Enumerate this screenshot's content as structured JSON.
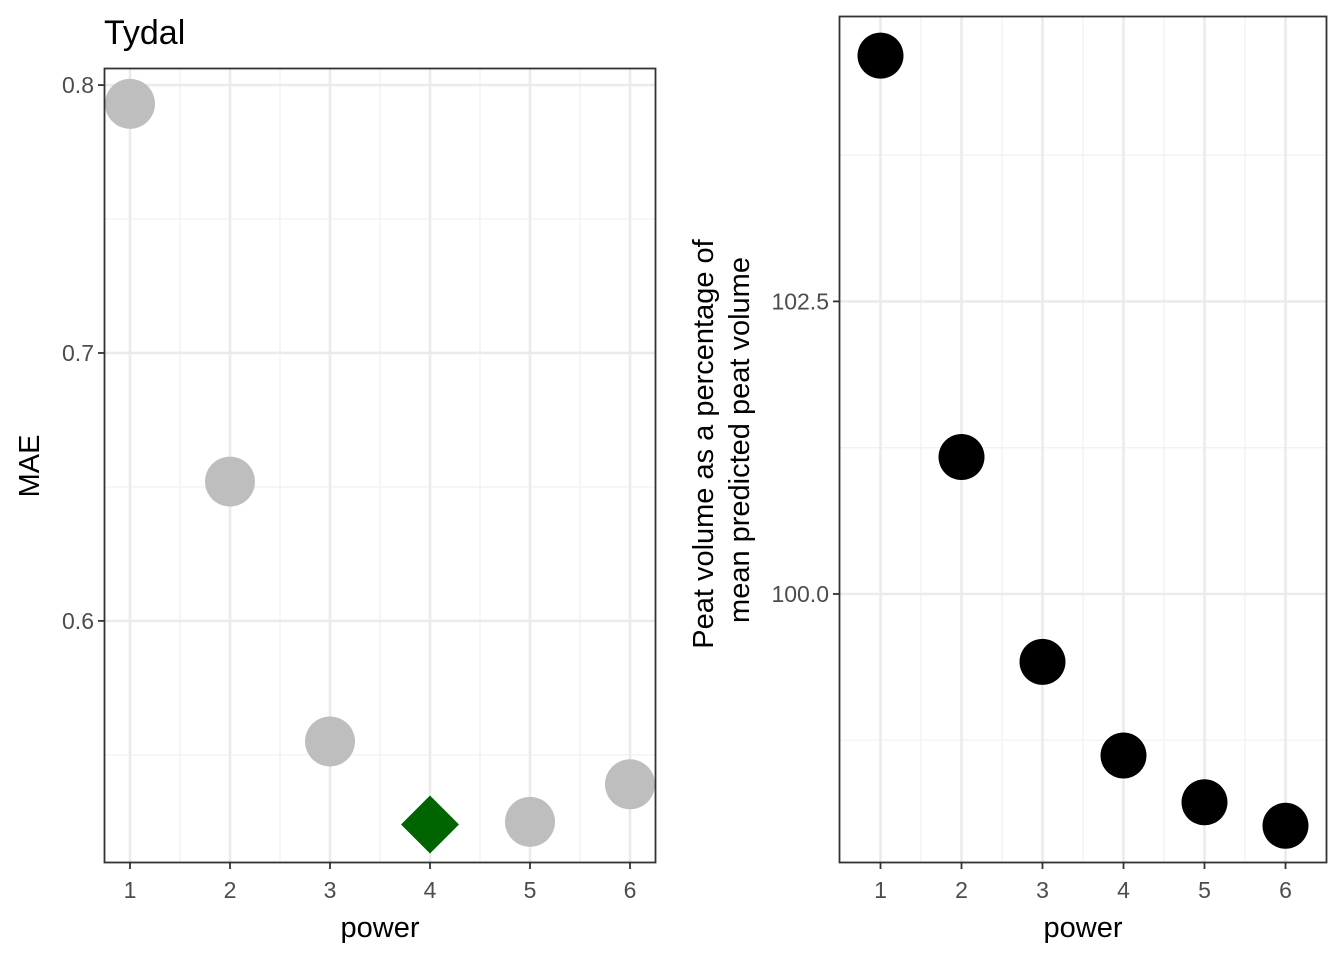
{
  "chart_data": [
    {
      "type": "scatter",
      "title": "Tydal",
      "xlabel": "power",
      "ylabel": "MAE",
      "xlim": [
        0.75,
        6.25
      ],
      "ylim": [
        0.51,
        0.806
      ],
      "x_ticks": [
        1,
        2,
        3,
        4,
        5,
        6
      ],
      "y_ticks": [
        0.6,
        0.7,
        0.8
      ],
      "y_tick_labels": [
        "0.6",
        "0.7",
        "0.8"
      ],
      "grid": true,
      "points": [
        {
          "x": 1,
          "y": 0.793,
          "marker": "circle",
          "color": "#bebebe"
        },
        {
          "x": 2,
          "y": 0.652,
          "marker": "circle",
          "color": "#bebebe"
        },
        {
          "x": 3,
          "y": 0.555,
          "marker": "circle",
          "color": "#bebebe"
        },
        {
          "x": 4,
          "y": 0.524,
          "marker": "diamond",
          "color": "#006400"
        },
        {
          "x": 5,
          "y": 0.525,
          "marker": "circle",
          "color": "#bebebe"
        },
        {
          "x": 6,
          "y": 0.539,
          "marker": "circle",
          "color": "#bebebe"
        }
      ]
    },
    {
      "type": "scatter",
      "title": "",
      "xlabel": "power",
      "ylabel": [
        "Peat volume as a percentage of",
        "mean predicted peat volume"
      ],
      "xlim": [
        0.5,
        6.5
      ],
      "ylim": [
        97.71,
        104.93
      ],
      "x_ticks": [
        1,
        2,
        3,
        4,
        5,
        6
      ],
      "y_ticks": [
        100.0,
        102.5
      ],
      "y_tick_labels": [
        "100.0",
        "102.5"
      ],
      "grid": true,
      "points": [
        {
          "x": 1,
          "y": 104.6,
          "marker": "circle",
          "color": "#000000"
        },
        {
          "x": 2,
          "y": 101.17,
          "marker": "circle",
          "color": "#000000"
        },
        {
          "x": 3,
          "y": 99.42,
          "marker": "circle",
          "color": "#000000"
        },
        {
          "x": 4,
          "y": 98.62,
          "marker": "circle",
          "color": "#000000"
        },
        {
          "x": 5,
          "y": 98.22,
          "marker": "circle",
          "color": "#000000"
        },
        {
          "x": 6,
          "y": 98.02,
          "marker": "circle",
          "color": "#000000"
        }
      ]
    }
  ]
}
